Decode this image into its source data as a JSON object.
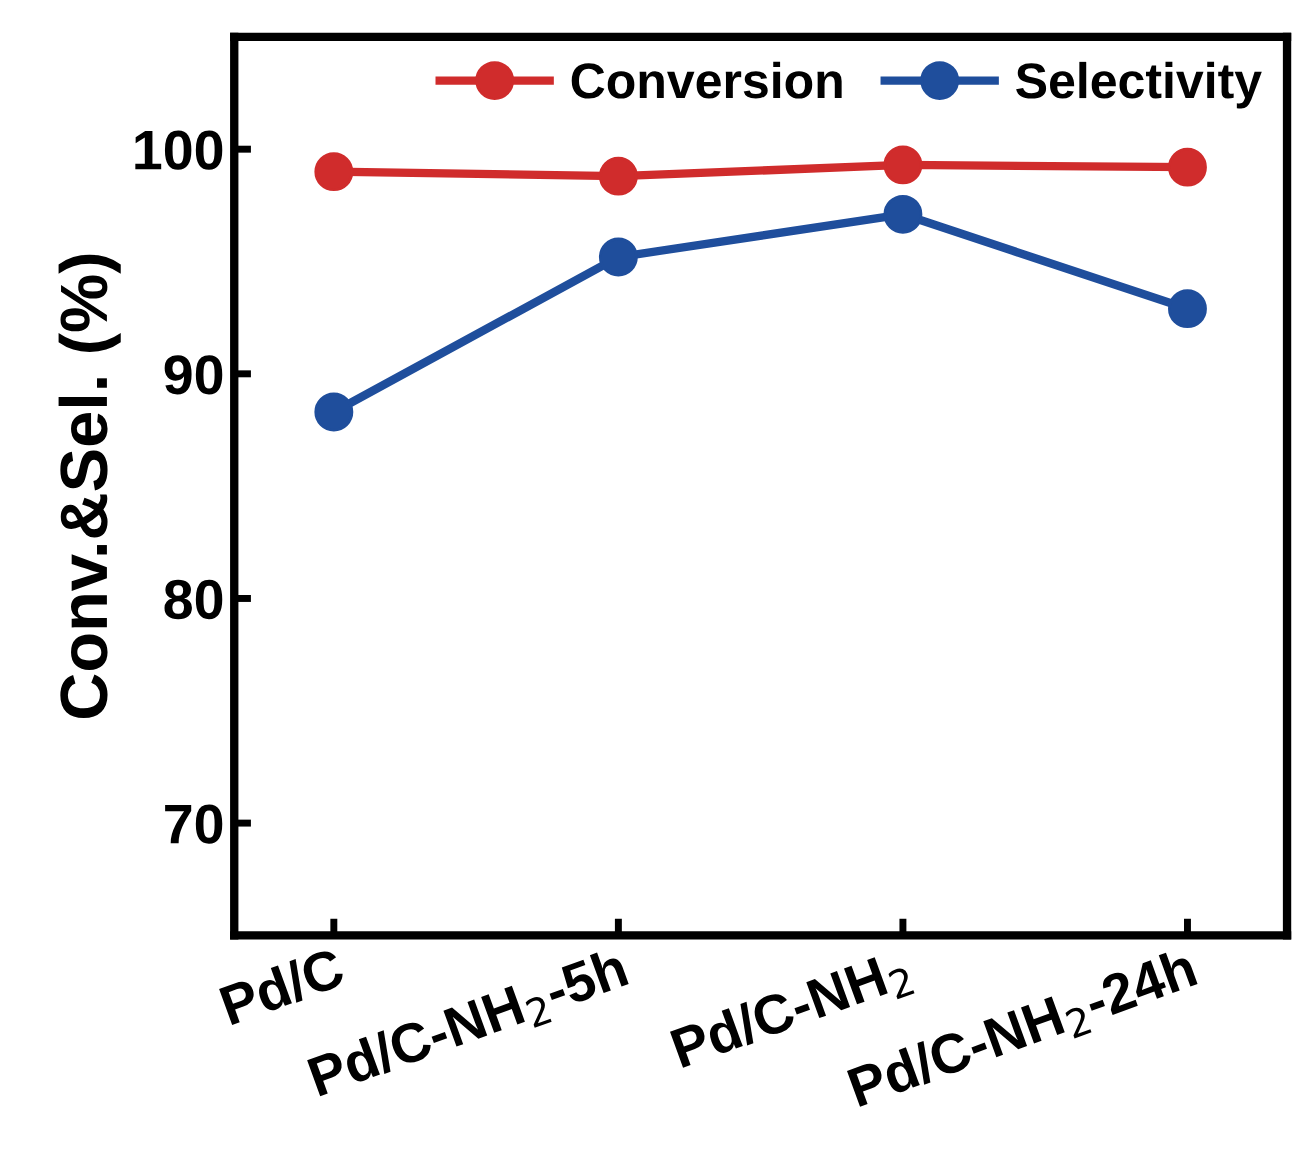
{
  "chart_data": {
    "type": "line",
    "ylabel": "Conv.&Sel. (%)",
    "categories": [
      "Pd/C",
      "Pd/C-NH$_{2}$-5h",
      "Pd/C-NH$_{2}$",
      "Pd/C-NH$_{2}$-24h"
    ],
    "series": [
      {
        "name": "Conversion",
        "color": "#d02c2c",
        "values": [
          99.0,
          98.8,
          99.3,
          99.2
        ]
      },
      {
        "name": "Selectivity",
        "color": "#1f4e9c",
        "values": [
          88.3,
          95.2,
          97.1,
          92.9
        ]
      }
    ],
    "ylim": [
      65,
      105
    ],
    "yticks": [
      70,
      80,
      90,
      100
    ],
    "grid": false,
    "legend": "top right",
    "marker": "circle",
    "line_style": "solid"
  }
}
